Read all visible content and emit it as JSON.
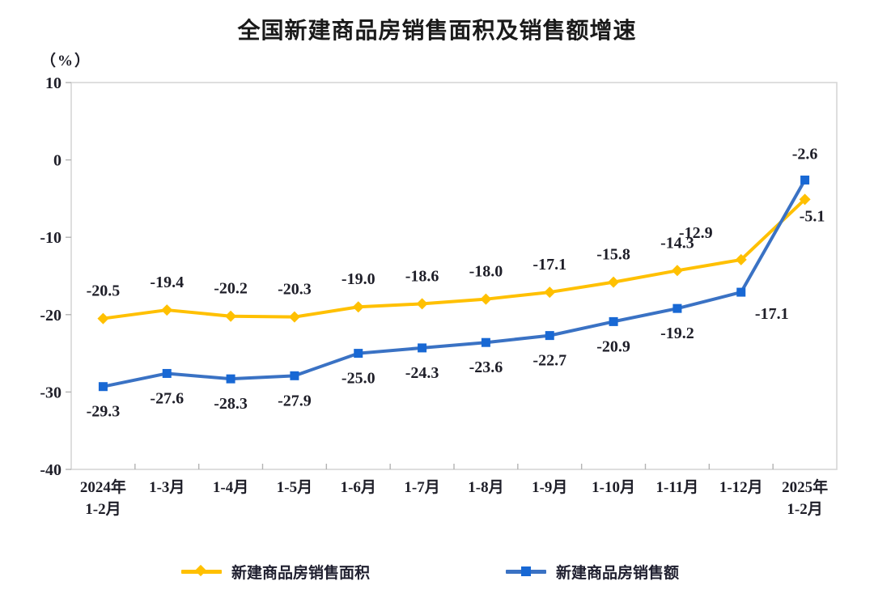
{
  "title": "全国新建商品房销售面积及销售额增速",
  "y_axis_unit": "（%）",
  "chart_data": {
    "type": "line",
    "categories": [
      "2024年\n1-2月",
      "1-3月",
      "1-4月",
      "1-5月",
      "1-6月",
      "1-7月",
      "1-8月",
      "1-9月",
      "1-10月",
      "1-11月",
      "1-12月",
      "2025年\n1-2月"
    ],
    "series": [
      {
        "name": "新建商品房销售面积",
        "marker": "diamond",
        "line_color": "#FFC000",
        "marker_color": "#FFC000",
        "values": [
          -20.5,
          -19.4,
          -20.2,
          -20.3,
          -19.0,
          -18.6,
          -18.0,
          -17.1,
          -15.8,
          -14.3,
          -12.9,
          -5.1
        ]
      },
      {
        "name": "新建商品房销售额",
        "marker": "square",
        "line_color": "#3A72C4",
        "marker_color": "#1868D4",
        "values": [
          -29.3,
          -27.6,
          -28.3,
          -27.9,
          -25.0,
          -24.3,
          -23.6,
          -22.7,
          -20.9,
          -19.2,
          -17.1,
          -2.6
        ]
      }
    ],
    "ylim": [
      -40,
      10
    ],
    "yticks": [
      10,
      0,
      -10,
      -20,
      -30,
      -40
    ],
    "grid": false,
    "legend_position": "bottom",
    "plot_border_color": "#d6d6d6",
    "tick_color": "#b3b3b3",
    "label_color": "#1e1e28"
  }
}
